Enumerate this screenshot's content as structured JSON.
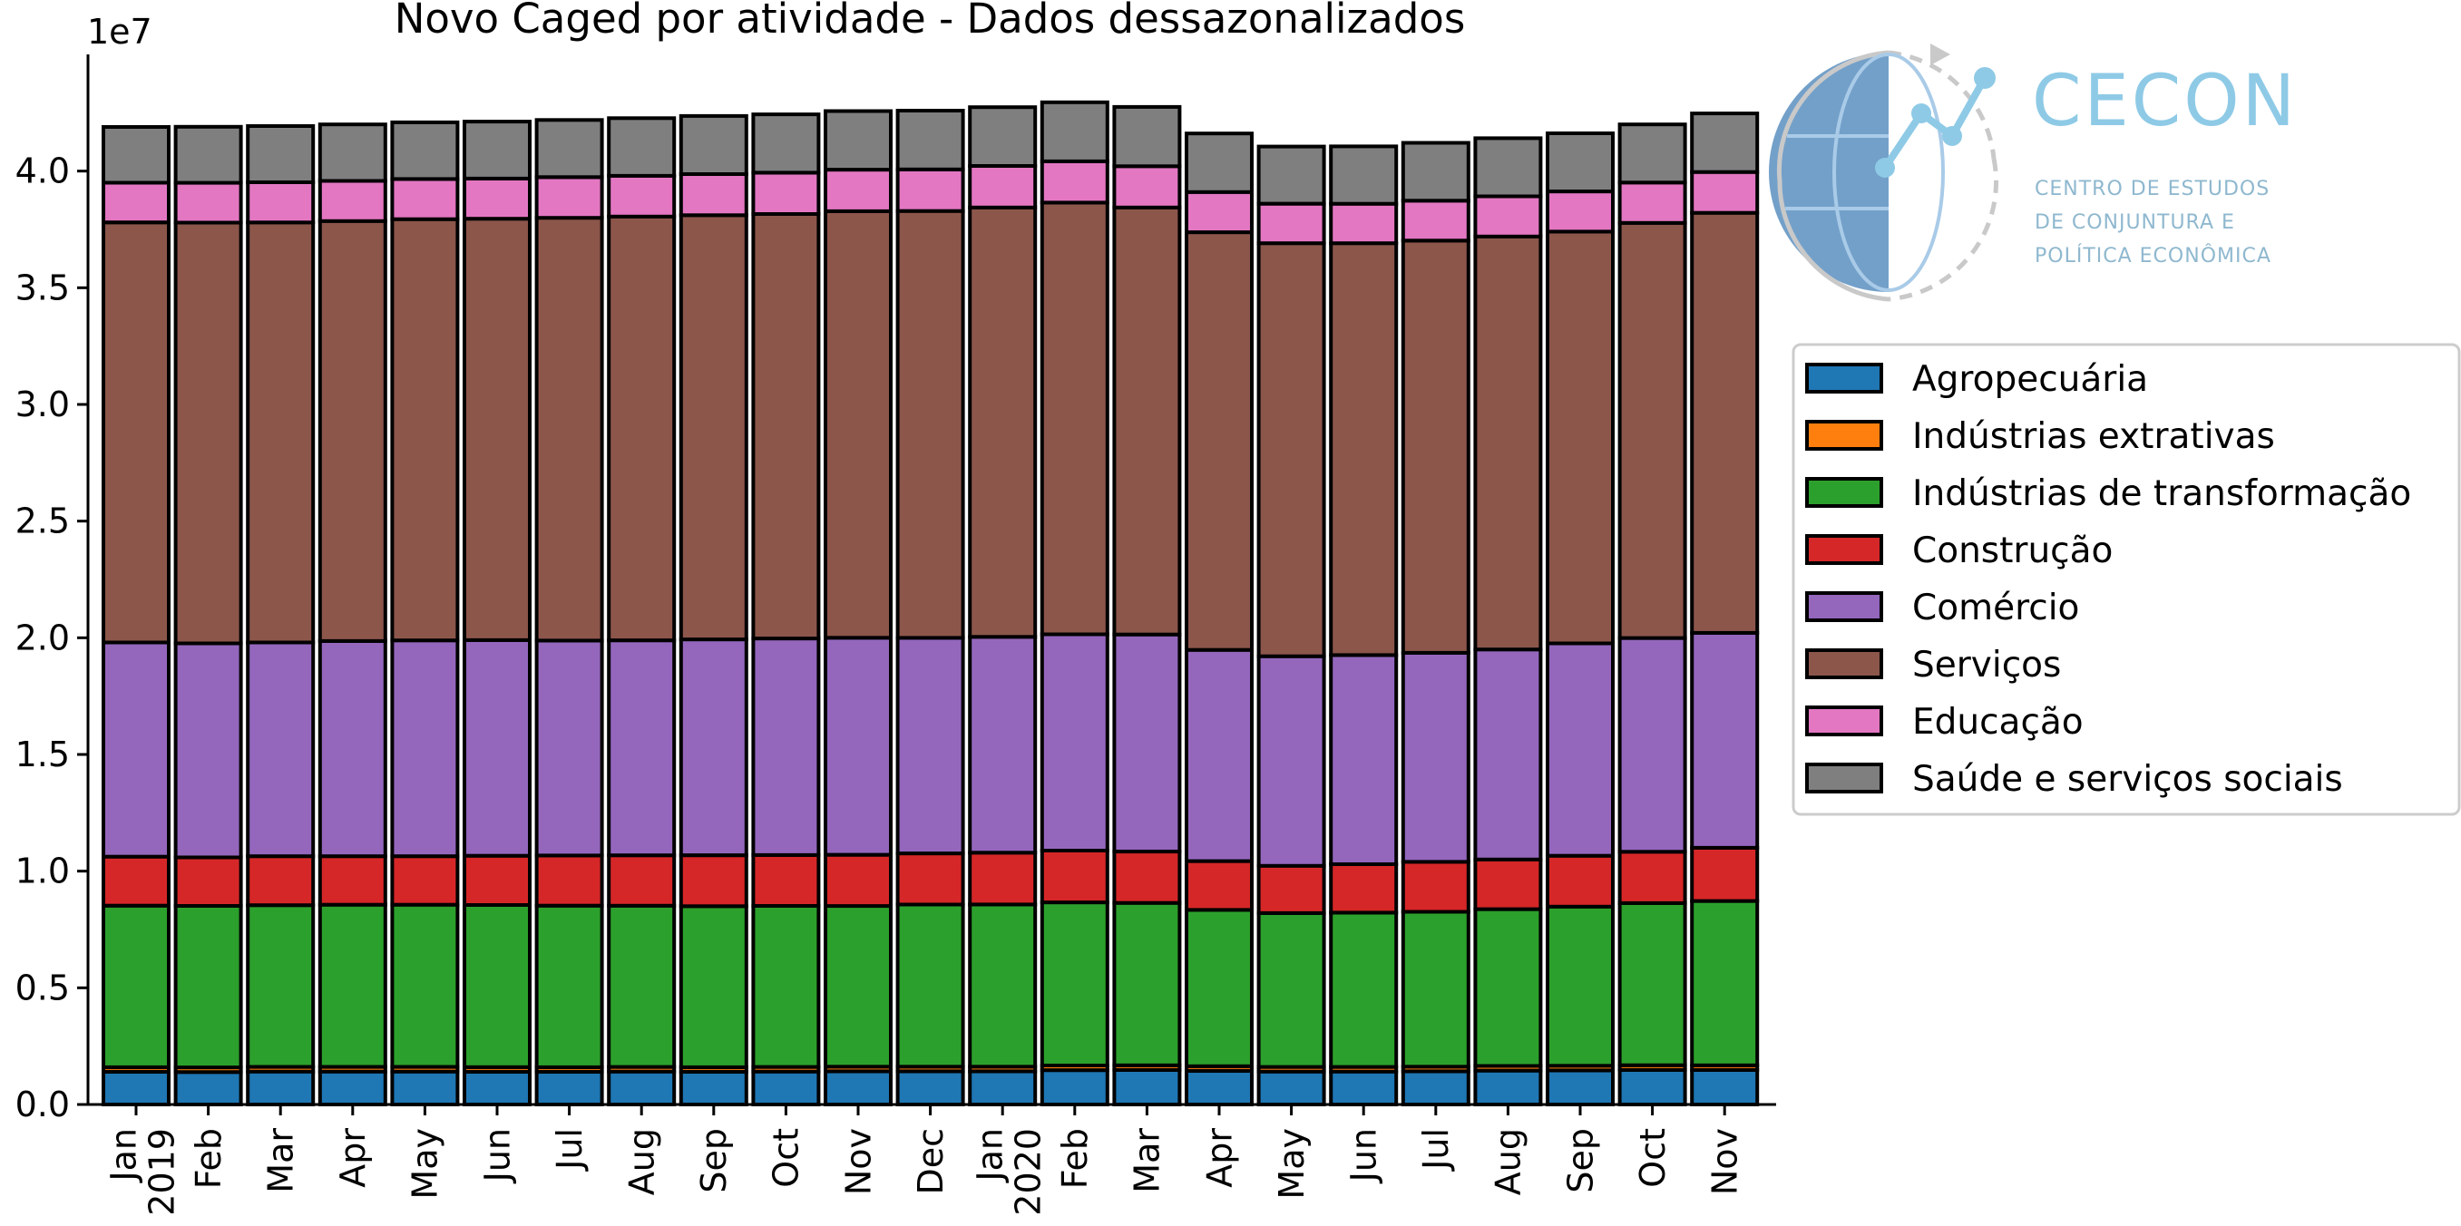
{
  "chart_data": {
    "type": "bar",
    "stacked": true,
    "title": "Novo Caged por atividade - Dados dessazonalizados",
    "offset_text": "1e7",
    "ylim": [
      0,
      45000000
    ],
    "yticks": [
      0,
      5000000,
      10000000,
      15000000,
      20000000,
      25000000,
      30000000,
      35000000,
      40000000
    ],
    "ytick_labels": [
      "0.0",
      "0.5",
      "1.0",
      "1.5",
      "2.0",
      "2.5",
      "3.0",
      "3.5",
      "4.0"
    ],
    "categories": [
      "2019-01",
      "2019-02",
      "2019-03",
      "2019-04",
      "2019-05",
      "2019-06",
      "2019-07",
      "2019-08",
      "2019-09",
      "2019-10",
      "2019-11",
      "2019-12",
      "2020-01",
      "2020-02",
      "2020-03",
      "2020-04",
      "2020-05",
      "2020-06",
      "2020-07",
      "2020-08",
      "2020-09",
      "2020-10",
      "2020-11"
    ],
    "xtick_labels": [
      {
        "month": "Jan",
        "year": "2019"
      },
      {
        "month": "Feb"
      },
      {
        "month": "Mar"
      },
      {
        "month": "Apr"
      },
      {
        "month": "May"
      },
      {
        "month": "Jun"
      },
      {
        "month": "Jul"
      },
      {
        "month": "Aug"
      },
      {
        "month": "Sep"
      },
      {
        "month": "Oct"
      },
      {
        "month": "Nov"
      },
      {
        "month": "Dec"
      },
      {
        "month": "Jan",
        "year": "2020"
      },
      {
        "month": "Feb"
      },
      {
        "month": "Mar"
      },
      {
        "month": "Apr"
      },
      {
        "month": "May"
      },
      {
        "month": "Jun"
      },
      {
        "month": "Jul"
      },
      {
        "month": "Aug"
      },
      {
        "month": "Sep"
      },
      {
        "month": "Oct"
      },
      {
        "month": "Nov"
      }
    ],
    "legend_position": "right",
    "series": [
      {
        "name": "Agropecuária",
        "color": "#1f77b4",
        "values": [
          1400000,
          1390000,
          1410000,
          1410000,
          1410000,
          1400000,
          1400000,
          1410000,
          1400000,
          1410000,
          1420000,
          1420000,
          1420000,
          1470000,
          1480000,
          1440000,
          1410000,
          1410000,
          1420000,
          1450000,
          1460000,
          1480000,
          1480000
        ]
      },
      {
        "name": "Indústrias extrativas",
        "color": "#ff7f0e",
        "values": [
          200000,
          200000,
          200000,
          200000,
          200000,
          200000,
          200000,
          200000,
          200000,
          200000,
          200000,
          200000,
          200000,
          200000,
          200000,
          200000,
          200000,
          200000,
          200000,
          200000,
          200000,
          200000,
          200000
        ]
      },
      {
        "name": "Indústrias de transformação",
        "color": "#2ca02c",
        "values": [
          6920000,
          6920000,
          6930000,
          6950000,
          6950000,
          6950000,
          6920000,
          6910000,
          6900000,
          6900000,
          6890000,
          6950000,
          6950000,
          6990000,
          6960000,
          6700000,
          6590000,
          6610000,
          6640000,
          6720000,
          6820000,
          6950000,
          7040000
        ]
      },
      {
        "name": "Construção",
        "color": "#d62728",
        "values": [
          2100000,
          2080000,
          2100000,
          2080000,
          2080000,
          2110000,
          2150000,
          2160000,
          2180000,
          2180000,
          2190000,
          2190000,
          2220000,
          2220000,
          2200000,
          2090000,
          2030000,
          2080000,
          2140000,
          2130000,
          2180000,
          2200000,
          2280000
        ]
      },
      {
        "name": "Comércio",
        "color": "#9467bd",
        "values": [
          9180000,
          9170000,
          9160000,
          9220000,
          9250000,
          9240000,
          9210000,
          9210000,
          9250000,
          9280000,
          9300000,
          9240000,
          9250000,
          9270000,
          9300000,
          9050000,
          8980000,
          8960000,
          8960000,
          9000000,
          9100000,
          9160000,
          9210000
        ]
      },
      {
        "name": "Serviços",
        "color": "#8c564b",
        "values": [
          18000000,
          18030000,
          18000000,
          18000000,
          18050000,
          18060000,
          18120000,
          18160000,
          18180000,
          18190000,
          18280000,
          18290000,
          18400000,
          18500000,
          18300000,
          17900000,
          17700000,
          17650000,
          17660000,
          17700000,
          17650000,
          17790000,
          18000000
        ]
      },
      {
        "name": "Educação",
        "color": "#e377c2",
        "values": [
          1700000,
          1710000,
          1720000,
          1720000,
          1720000,
          1720000,
          1740000,
          1750000,
          1760000,
          1770000,
          1780000,
          1780000,
          1780000,
          1770000,
          1770000,
          1720000,
          1690000,
          1690000,
          1710000,
          1720000,
          1720000,
          1730000,
          1750000
        ]
      },
      {
        "name": "Saúde e serviços sociais",
        "color": "#7f7f7f",
        "values": [
          2390000,
          2400000,
          2410000,
          2420000,
          2430000,
          2440000,
          2450000,
          2470000,
          2490000,
          2500000,
          2510000,
          2520000,
          2520000,
          2530000,
          2540000,
          2510000,
          2450000,
          2460000,
          2480000,
          2490000,
          2490000,
          2490000,
          2510000
        ]
      }
    ]
  },
  "logo": {
    "name": "CECON",
    "subtitle_lines": [
      "CENTRO DE ESTUDOS",
      "DE CONJUNTURA E",
      "POLÍTICA ECONÔMICA"
    ]
  }
}
